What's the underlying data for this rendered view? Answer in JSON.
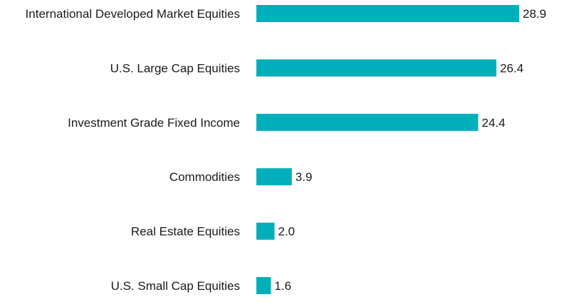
{
  "chart_data": {
    "type": "bar",
    "orientation": "horizontal",
    "title": "",
    "xlabel": "",
    "ylabel": "",
    "categories": [
      "International Developed Market Equities",
      "U.S. Large Cap Equities",
      "Investment Grade Fixed Income",
      "Commodities",
      "Real Estate Equities",
      "U.S. Small Cap Equities"
    ],
    "values": [
      28.9,
      26.4,
      24.4,
      3.9,
      2.0,
      1.6
    ],
    "value_labels": [
      "28.9",
      "26.4",
      "24.4",
      "3.9",
      "2.0",
      "1.6"
    ],
    "xlim": [
      0,
      28.9
    ],
    "grid": false,
    "legend": "none",
    "bar_color": "#00AFB9"
  }
}
